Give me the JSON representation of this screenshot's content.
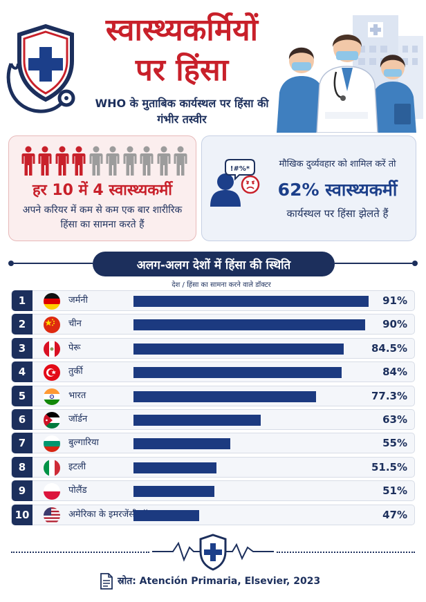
{
  "header": {
    "title_line1": "स्वास्थ्यकर्मियों",
    "title_line2": "पर हिंसा",
    "subtitle": "WHO के मुताबिक कार्यस्थल पर हिंसा की गंभीर तस्वीर"
  },
  "stat_left": {
    "headline": "हर 10 में 4 स्वास्थ्यकर्मी",
    "description": "अपने करियर में कम से कम एक बार शारीरिक हिंसा का सामना करते हैं",
    "icon_total": 10,
    "icon_highlighted": 4,
    "highlight_color": "#c8202a",
    "muted_color": "#9c9c9c"
  },
  "stat_right": {
    "lead_text": "मौखिक दुर्व्यवहार को शामिल करें तो",
    "headline": "62% स्वास्थ्यकर्मी",
    "description": "कार्यस्थल पर हिंसा झेलते हैं",
    "speech_symbols": "!#%*"
  },
  "section": {
    "heading": "अलग-अलग देशों में हिंसा की स्थिति",
    "column_header": "देश / हिंसा का सामना करने वाले डॉक्टर"
  },
  "chart_data": {
    "type": "bar",
    "orientation": "horizontal",
    "categories": [
      "जर्मनी",
      "चीन",
      "पेरू",
      "तुर्की",
      "भारत",
      "जॉर्डन",
      "बुल्गारिया",
      "इटली",
      "पोलैंड",
      "अमेरिका के इमरजेंसी डॉक्टर"
    ],
    "values": [
      91,
      90,
      84.5,
      84,
      77.3,
      63,
      55,
      51.5,
      51,
      47
    ],
    "value_labels": [
      "91%",
      "90%",
      "84.5%",
      "84%",
      "77.3%",
      "63%",
      "55%",
      "51.5%",
      "51%",
      "47%"
    ],
    "ranks": [
      "1",
      "2",
      "3",
      "4",
      "5",
      "6",
      "7",
      "8",
      "9",
      "10"
    ],
    "flags": [
      "germany-flag",
      "china-flag",
      "peru-flag",
      "turkey-flag",
      "india-flag",
      "jordan-flag",
      "bulgaria-flag",
      "italy-flag",
      "poland-flag",
      "usa-flag"
    ],
    "bar_color": "#1c3a80",
    "value_axis_range": [
      30,
      92
    ],
    "title": "",
    "xlabel": "",
    "ylabel": ""
  },
  "footer": {
    "source": "स्रोत: Atención Primaria, Elsevier, 2023"
  },
  "colors": {
    "primary_navy": "#1c2f5c",
    "accent_red": "#c8202a"
  }
}
